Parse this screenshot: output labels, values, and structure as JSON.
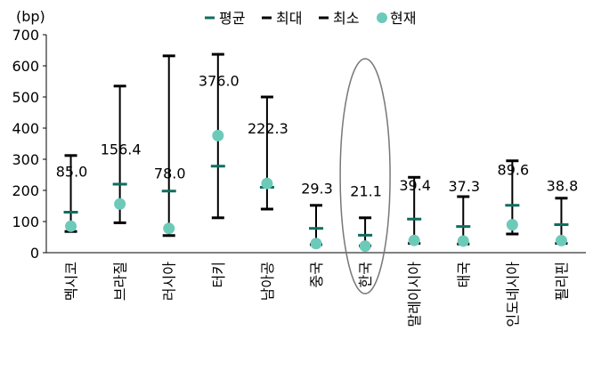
{
  "chart_data": {
    "type": "range",
    "unit_label": "(bp)",
    "ylim": [
      0,
      700
    ],
    "yticks": [
      "0",
      "100",
      "200",
      "300",
      "400",
      "500",
      "600",
      "700"
    ],
    "legend": {
      "position": "top",
      "items": [
        {
          "label": "평균",
          "marker": "dash",
          "color": "#0f6e5e"
        },
        {
          "label": "최대",
          "marker": "dash",
          "color": "#000000"
        },
        {
          "label": "최소",
          "marker": "dash",
          "color": "#000000"
        },
        {
          "label": "현재",
          "marker": "dot",
          "color": "#6ccab8"
        }
      ]
    },
    "colors": {
      "range_line": "#000000",
      "average": "#0f6e5e",
      "current": "#6ccab8",
      "highlight": "#777777"
    },
    "categories": [
      "멕시코",
      "브라질",
      "러시아",
      "터키",
      "남아공",
      "중국",
      "한국",
      "말레이시아",
      "태국",
      "인도네시아",
      "필리핀"
    ],
    "series": [
      {
        "name": "최대",
        "values": [
          312,
          535,
          632,
          637,
          500,
          152,
          112,
          242,
          180,
          295,
          175
        ]
      },
      {
        "name": "최소",
        "values": [
          68,
          96,
          55,
          112,
          140,
          26,
          22,
          30,
          28,
          60,
          30
        ]
      },
      {
        "name": "평균",
        "values": [
          130,
          220,
          198,
          278,
          210,
          78,
          56,
          108,
          84,
          152,
          90
        ]
      },
      {
        "name": "현재",
        "values": [
          85.0,
          156.4,
          78.0,
          376.0,
          222.3,
          29.3,
          21.1,
          39.4,
          37.3,
          89.6,
          38.8
        ]
      }
    ],
    "data_labels": [
      "85.0",
      "156.4",
      "78.0",
      "376.0",
      "222.3",
      "29.3",
      "21.1",
      "39.4",
      "37.3",
      "89.6",
      "38.8"
    ],
    "highlighted_category": "한국"
  }
}
